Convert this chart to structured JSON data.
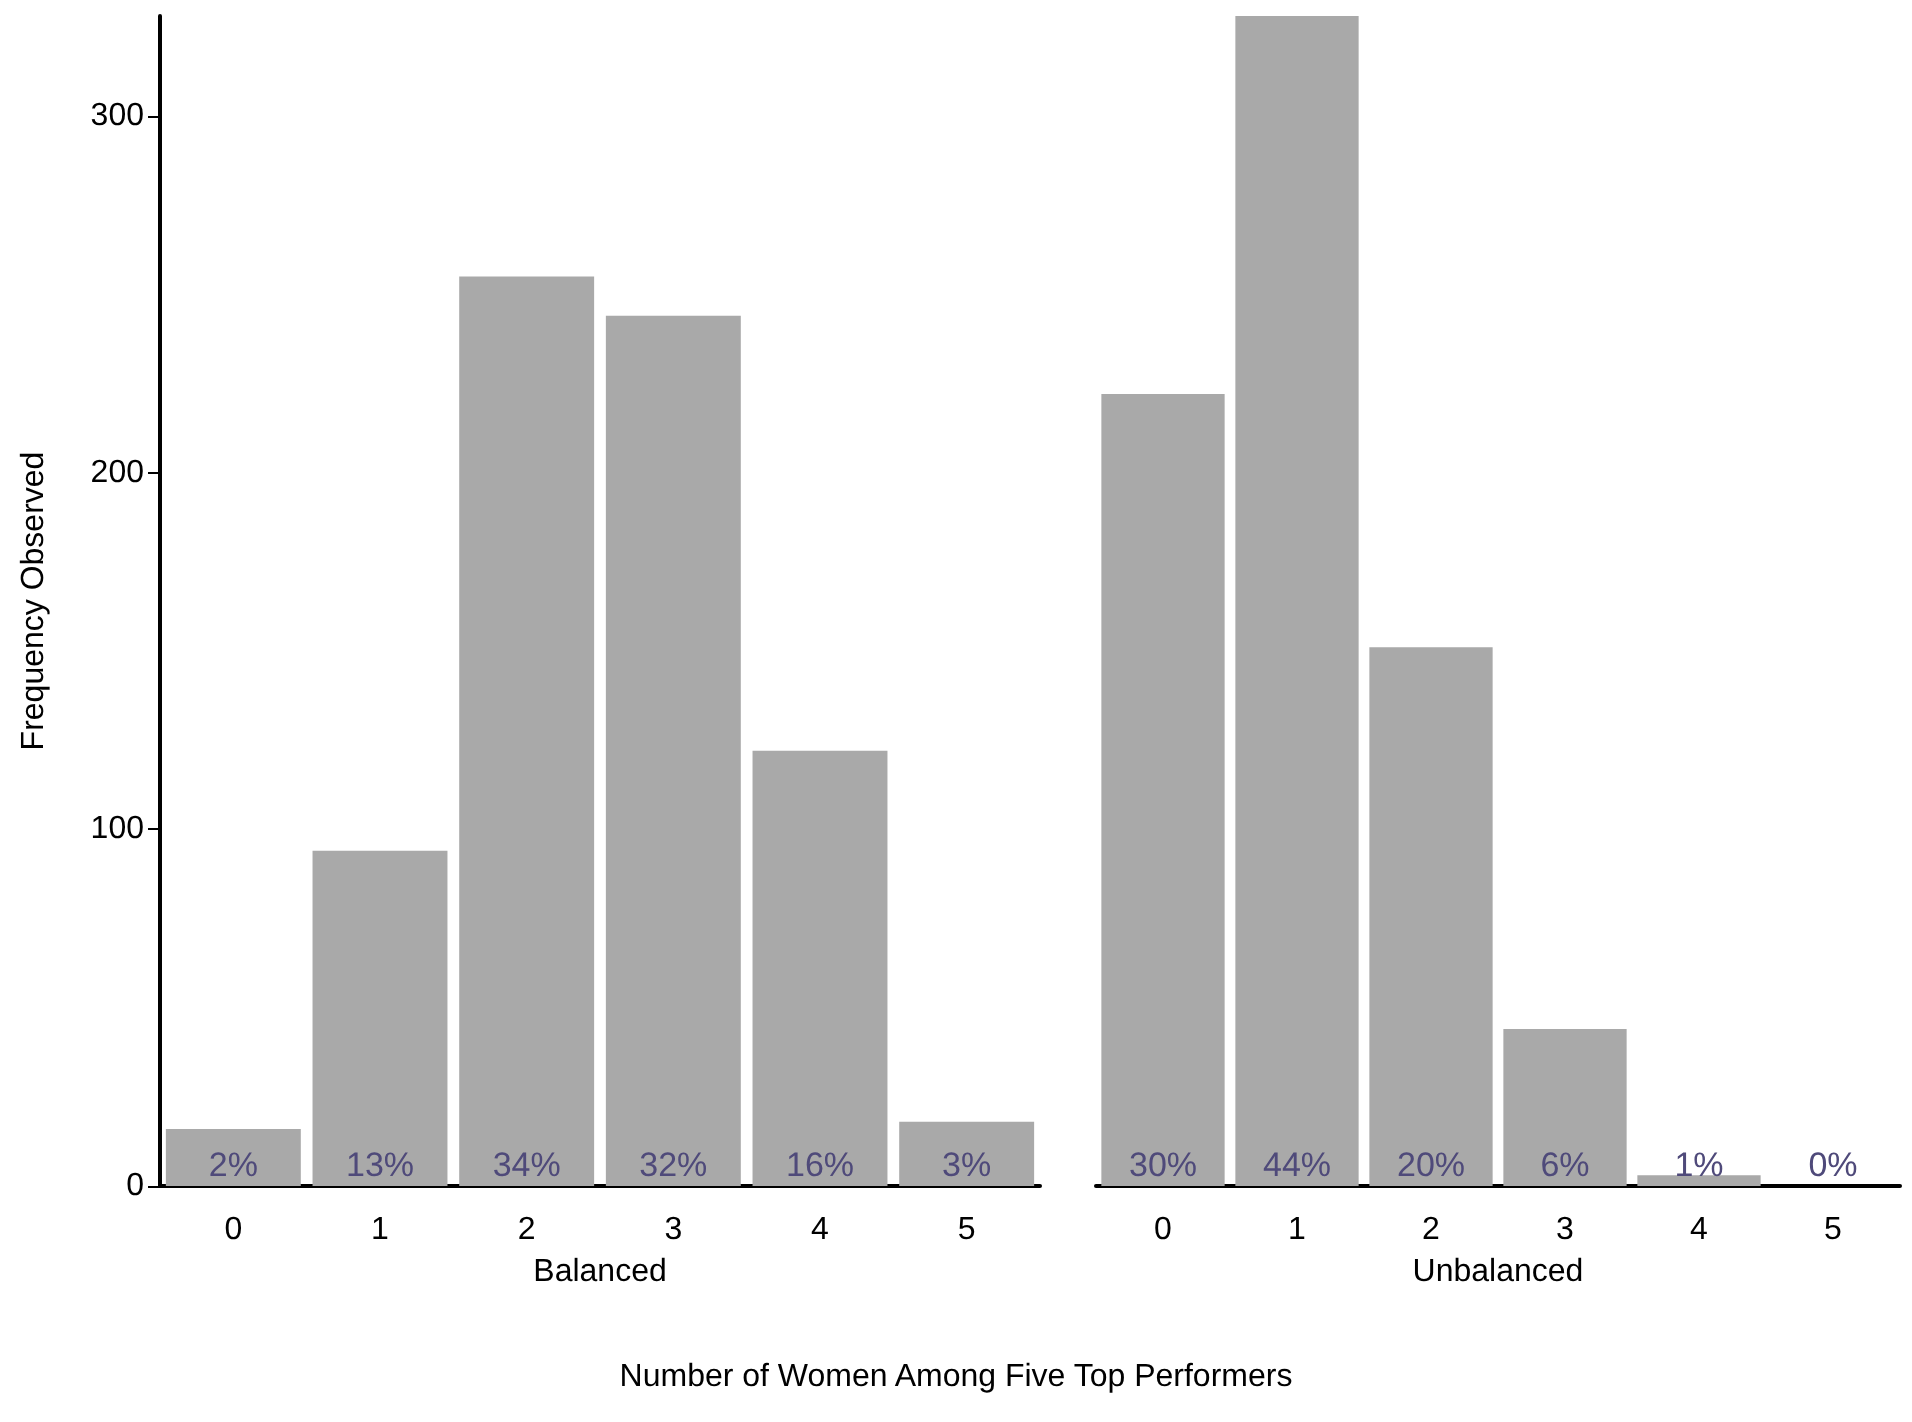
{
  "chart_data": [
    {
      "type": "bar",
      "xlabel": "Balanced",
      "ylabel": "Frequency Observed",
      "categories": [
        "0",
        "1",
        "2",
        "3",
        "4",
        "5"
      ],
      "values": [
        16,
        94,
        255,
        244,
        122,
        18
      ],
      "color": "#a9a9a9",
      "ylim": [
        0,
        328
      ],
      "yticks": [
        0,
        100,
        200,
        300
      ],
      "grid": false,
      "annotations": [
        {
          "text": "2%",
          "x": "0",
          "y": 0
        },
        {
          "text": "13%",
          "x": "1",
          "y": 0
        },
        {
          "text": "34%",
          "x": "2",
          "y": 0
        },
        {
          "text": "32%",
          "x": "3",
          "y": 0
        },
        {
          "text": "16%",
          "x": "4",
          "y": 0
        },
        {
          "text": "3%",
          "x": "5",
          "y": 0
        },
        "Number of Women Among Five Top Performers"
      ]
    },
    {
      "type": "bar",
      "xlabel": "Unbalanced",
      "categories": [
        "0",
        "1",
        "2",
        "3",
        "4",
        "5"
      ],
      "values": [
        222,
        328,
        151,
        44,
        3,
        0
      ],
      "color": "#a9a9a9",
      "ylim": [
        0,
        328
      ],
      "yticks": [
        0,
        100,
        200,
        300
      ],
      "grid": false,
      "tick_labels": "x",
      "annotations": [
        {
          "text": "30%",
          "x": "0",
          "y": 0
        },
        {
          "text": "44%",
          "x": "1",
          "y": 0
        },
        {
          "text": "20%",
          "x": "2",
          "y": 0
        },
        {
          "text": "6%",
          "x": "3",
          "y": 0
        },
        {
          "text": "1%",
          "x": "4",
          "y": 0
        },
        {
          "text": "0%",
          "x": "5",
          "y": 0
        }
      ]
    }
  ]
}
